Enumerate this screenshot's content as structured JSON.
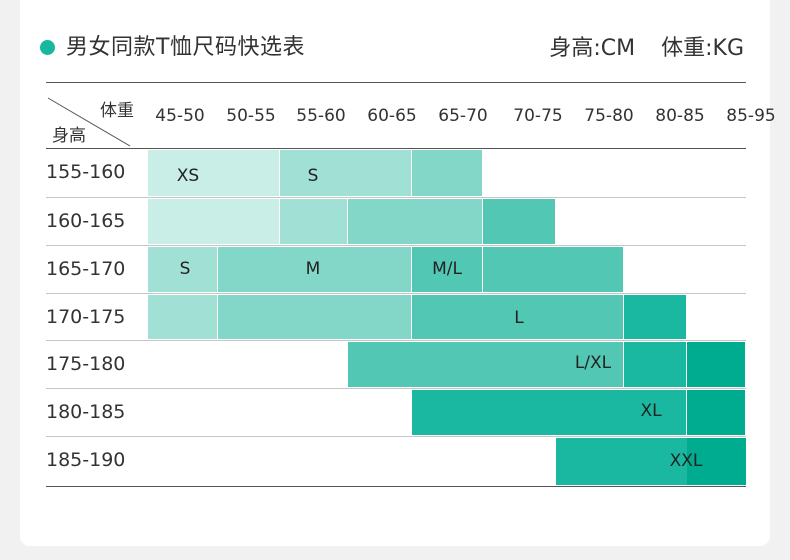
{
  "title": "男女同款T恤尺码快选表",
  "units": {
    "height": "身高:CM",
    "weight": "体重:KG"
  },
  "corner": {
    "weight": "体重",
    "height": "身高"
  },
  "columns": [
    "45-50",
    "50-55",
    "55-60",
    "60-65",
    "65-70",
    "70-75",
    "75-80",
    "80-85",
    "85-95"
  ],
  "rows": [
    "155-160",
    "160-165",
    "165-170",
    "170-175",
    "175-180",
    "180-185",
    "185-190"
  ],
  "sizes": [
    "XS",
    "S",
    "S",
    "M",
    "M/L",
    "L",
    "L/XL",
    "XL",
    "XXL"
  ],
  "colors": {
    "accent": "#17b8a0",
    "shade1": "#c9ede7",
    "shade2": "#a0e0d5",
    "shade3": "#82d7c8",
    "shade4": "#52c8b4",
    "shade5": "#1ab8a0",
    "shade6": "#00ac90"
  }
}
